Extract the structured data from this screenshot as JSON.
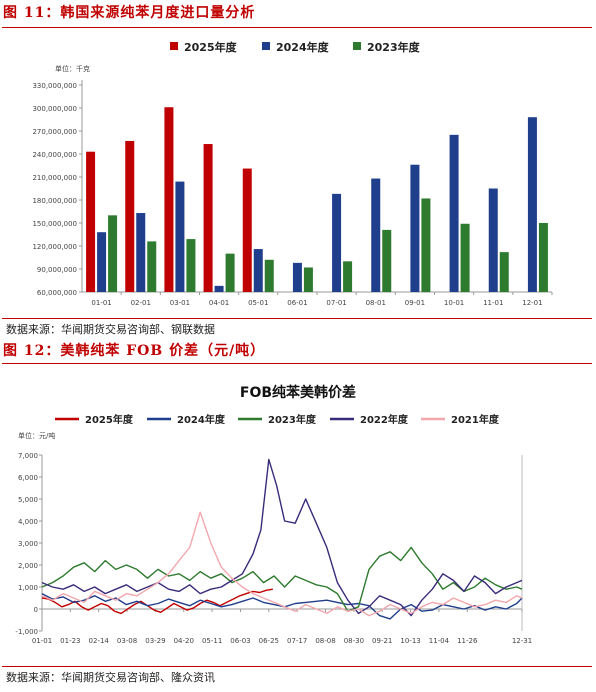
{
  "figure1": {
    "label": "图 11：韩国来源纯苯月度进口量分析",
    "source": "数据来源：华闻期货交易咨询部、钢联数据"
  },
  "figure2": {
    "label": "图 12：美韩纯苯 FOB 价差（元/吨）",
    "source": "数据来源：华闻期货交易咨询部、隆众资讯"
  },
  "chart_data": [
    {
      "type": "bar",
      "title": "",
      "unit_label": "单位：千克",
      "categories": [
        "01-01",
        "02-01",
        "03-01",
        "04-01",
        "05-01",
        "06-01",
        "07-01",
        "08-01",
        "09-01",
        "10-01",
        "11-01",
        "12-01"
      ],
      "ylim": [
        60000000,
        330000000
      ],
      "yticks": [
        60000000,
        90000000,
        120000000,
        150000000,
        180000000,
        210000000,
        240000000,
        270000000,
        300000000,
        330000000
      ],
      "legend_position": "top",
      "grid": false,
      "series": [
        {
          "name": "2025年度",
          "color": "#c00000",
          "values": [
            243000000,
            257000000,
            301000000,
            253000000,
            221000000,
            null,
            null,
            null,
            null,
            null,
            null,
            null
          ]
        },
        {
          "name": "2024年度",
          "color": "#1f3f8c",
          "values": [
            138000000,
            163000000,
            204000000,
            68000000,
            116000000,
            98000000,
            188000000,
            208000000,
            226000000,
            265000000,
            195000000,
            288000000
          ]
        },
        {
          "name": "2023年度",
          "color": "#2e7a2e",
          "values": [
            160000000,
            126000000,
            129000000,
            110000000,
            102000000,
            92000000,
            100000000,
            141000000,
            182000000,
            149000000,
            112000000,
            150000000
          ]
        }
      ]
    },
    {
      "type": "line",
      "title": "FOB纯苯美韩价差",
      "unit_label": "单位：元/吨",
      "x_ticks": [
        "01-01",
        "01-23",
        "02-14",
        "03-08",
        "03-29",
        "04-20",
        "05-11",
        "06-03",
        "06-25",
        "07-17",
        "08-08",
        "08-30",
        "09-21",
        "10-13",
        "11-04",
        "11-26",
        "12-31"
      ],
      "ylim": [
        -1000,
        7000
      ],
      "yticks": [
        -1000,
        0,
        1000,
        2000,
        3000,
        4000,
        5000,
        6000,
        7000
      ],
      "legend_position": "top",
      "grid": false,
      "series": [
        {
          "name": "2025年度",
          "color": "#c00000",
          "x": [
            0,
            5,
            10,
            15,
            20,
            25,
            30,
            35,
            40,
            45,
            50,
            55,
            60,
            65,
            70,
            75,
            80,
            85,
            90,
            95,
            100,
            105,
            110,
            115,
            120,
            125,
            130,
            135,
            140,
            145,
            150,
            155,
            160,
            165,
            170,
            175
          ],
          "y": [
            500,
            450,
            300,
            100,
            200,
            350,
            100,
            -50,
            100,
            250,
            150,
            -100,
            -200,
            0,
            200,
            350,
            150,
            -50,
            -150,
            50,
            250,
            100,
            -50,
            50,
            250,
            400,
            300,
            150,
            300,
            450,
            600,
            700,
            800,
            750,
            850,
            900
          ]
        },
        {
          "name": "2024年度",
          "color": "#1f3f8c",
          "x": [
            0,
            8,
            16,
            24,
            32,
            40,
            48,
            56,
            64,
            72,
            80,
            88,
            96,
            104,
            112,
            120,
            128,
            136,
            144,
            152,
            160,
            168,
            176,
            184,
            192,
            200,
            208,
            216,
            224,
            232,
            240,
            248,
            256,
            264,
            272,
            280,
            288,
            296,
            304,
            312,
            320,
            328,
            336,
            344,
            352,
            360,
            364
          ],
          "y": [
            700,
            450,
            550,
            300,
            400,
            600,
            350,
            500,
            200,
            350,
            150,
            250,
            450,
            300,
            150,
            400,
            250,
            100,
            200,
            350,
            500,
            300,
            200,
            100,
            250,
            300,
            350,
            400,
            300,
            200,
            250,
            150,
            -300,
            -450,
            0,
            200,
            -100,
            -50,
            200,
            100,
            0,
            150,
            -50,
            100,
            0,
            250,
            500
          ]
        },
        {
          "name": "2023年度",
          "color": "#2e7a2e",
          "x": [
            0,
            8,
            16,
            24,
            32,
            40,
            48,
            56,
            64,
            72,
            80,
            88,
            96,
            104,
            112,
            120,
            128,
            136,
            144,
            152,
            160,
            168,
            176,
            184,
            192,
            200,
            208,
            216,
            224,
            232,
            240,
            248,
            256,
            264,
            272,
            280,
            288,
            296,
            304,
            312,
            320,
            328,
            336,
            344,
            352,
            360,
            364
          ],
          "y": [
            1000,
            1200,
            1500,
            1900,
            2100,
            1700,
            2200,
            1800,
            2000,
            1800,
            1400,
            1800,
            1500,
            1600,
            1300,
            1700,
            1400,
            1600,
            1200,
            1400,
            1700,
            1200,
            1500,
            1000,
            1500,
            1300,
            1100,
            1000,
            700,
            -100,
            100,
            1800,
            2400,
            2600,
            2200,
            2800,
            2100,
            1600,
            900,
            1200,
            800,
            1000,
            1400,
            1100,
            900,
            1000,
            900
          ]
        },
        {
          "name": "2022年度",
          "color": "#3a2a7a",
          "x": [
            0,
            8,
            16,
            24,
            32,
            40,
            48,
            56,
            64,
            72,
            80,
            88,
            96,
            104,
            112,
            120,
            128,
            136,
            144,
            152,
            160,
            166,
            172,
            178,
            184,
            192,
            200,
            208,
            216,
            224,
            232,
            240,
            248,
            256,
            264,
            272,
            280,
            288,
            296,
            304,
            312,
            320,
            328,
            336,
            344,
            352,
            360,
            364
          ],
          "y": [
            1200,
            1000,
            900,
            1100,
            800,
            1000,
            700,
            900,
            1100,
            800,
            1000,
            1200,
            900,
            800,
            1100,
            700,
            900,
            1000,
            1300,
            1600,
            2500,
            3600,
            6800,
            5600,
            4000,
            3900,
            5000,
            3900,
            2800,
            1200,
            400,
            -200,
            100,
            600,
            400,
            200,
            -300,
            400,
            900,
            1600,
            1300,
            800,
            1500,
            1200,
            700,
            1000,
            1200,
            1300
          ]
        },
        {
          "name": "2021年度",
          "color": "#f2a7ad",
          "x": [
            0,
            8,
            16,
            24,
            32,
            40,
            48,
            56,
            64,
            72,
            80,
            88,
            96,
            104,
            112,
            120,
            128,
            136,
            144,
            152,
            160,
            168,
            176,
            184,
            192,
            200,
            208,
            216,
            224,
            232,
            240,
            248,
            256,
            264,
            272,
            280,
            288,
            296,
            304,
            312,
            320,
            328,
            336,
            344,
            352,
            360,
            364
          ],
          "y": [
            600,
            400,
            700,
            500,
            300,
            800,
            600,
            400,
            700,
            600,
            900,
            1200,
            1600,
            2200,
            2800,
            4400,
            3000,
            1900,
            1400,
            1000,
            700,
            500,
            300,
            100,
            -100,
            200,
            0,
            -200,
            100,
            -100,
            0,
            -300,
            -100,
            200,
            0,
            -200,
            100,
            300,
            200,
            500,
            300,
            100,
            200,
            400,
            300,
            600,
            500
          ]
        }
      ]
    }
  ]
}
